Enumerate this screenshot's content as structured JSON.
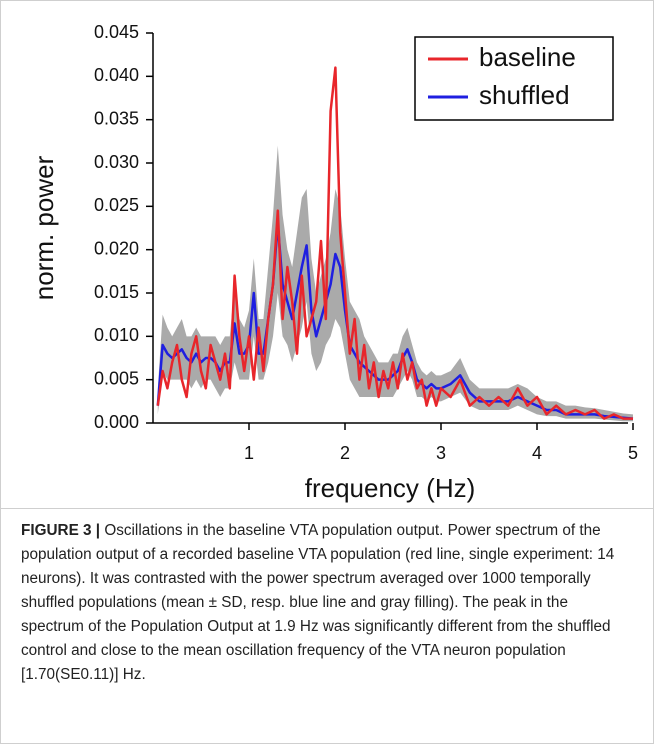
{
  "chart_data": {
    "type": "line",
    "xlabel": "frequency (Hz)",
    "ylabel": "norm. power",
    "x": [
      0.05,
      0.1,
      0.15,
      0.2,
      0.25,
      0.3,
      0.35,
      0.4,
      0.45,
      0.5,
      0.55,
      0.6,
      0.65,
      0.7,
      0.75,
      0.8,
      0.85,
      0.9,
      0.95,
      1.0,
      1.05,
      1.1,
      1.15,
      1.2,
      1.25,
      1.3,
      1.35,
      1.4,
      1.45,
      1.5,
      1.55,
      1.6,
      1.65,
      1.7,
      1.75,
      1.8,
      1.85,
      1.9,
      1.95,
      2.0,
      2.05,
      2.1,
      2.15,
      2.2,
      2.25,
      2.3,
      2.35,
      2.4,
      2.45,
      2.5,
      2.55,
      2.6,
      2.65,
      2.7,
      2.75,
      2.8,
      2.85,
      2.9,
      2.95,
      3.0,
      3.1,
      3.2,
      3.3,
      3.4,
      3.5,
      3.6,
      3.7,
      3.8,
      3.9,
      4.0,
      4.1,
      4.2,
      4.3,
      4.4,
      4.5,
      4.6,
      4.7,
      4.8,
      4.9,
      5.0
    ],
    "band": {
      "color": "#aaaaaa",
      "upper": [
        0.004,
        0.0125,
        0.011,
        0.01,
        0.011,
        0.012,
        0.01,
        0.01,
        0.011,
        0.01,
        0.01,
        0.01,
        0.01,
        0.009,
        0.01,
        0.01,
        0.016,
        0.012,
        0.011,
        0.013,
        0.019,
        0.012,
        0.012,
        0.018,
        0.024,
        0.032,
        0.024,
        0.02,
        0.018,
        0.022,
        0.026,
        0.027,
        0.019,
        0.015,
        0.017,
        0.019,
        0.022,
        0.027,
        0.025,
        0.019,
        0.014,
        0.013,
        0.012,
        0.01,
        0.009,
        0.008,
        0.007,
        0.007,
        0.007,
        0.008,
        0.008,
        0.01,
        0.011,
        0.009,
        0.007,
        0.006,
        0.0055,
        0.006,
        0.0055,
        0.0055,
        0.006,
        0.0075,
        0.005,
        0.004,
        0.004,
        0.004,
        0.004,
        0.0045,
        0.004,
        0.003,
        0.0025,
        0.0025,
        0.002,
        0.002,
        0.0018,
        0.0017,
        0.0015,
        0.0013,
        0.0011,
        0.001
      ],
      "lower": [
        0.001,
        0.006,
        0.005,
        0.005,
        0.005,
        0.005,
        0.005,
        0.004,
        0.005,
        0.004,
        0.005,
        0.005,
        0.004,
        0.003,
        0.004,
        0.004,
        0.007,
        0.005,
        0.005,
        0.005,
        0.01,
        0.005,
        0.005,
        0.007,
        0.01,
        0.015,
        0.01,
        0.009,
        0.007,
        0.009,
        0.011,
        0.014,
        0.008,
        0.006,
        0.007,
        0.009,
        0.01,
        0.012,
        0.011,
        0.008,
        0.005,
        0.004,
        0.003,
        0.003,
        0.003,
        0.003,
        0.003,
        0.003,
        0.003,
        0.003,
        0.004,
        0.005,
        0.006,
        0.005,
        0.003,
        0.003,
        0.0025,
        0.003,
        0.0025,
        0.0025,
        0.003,
        0.0035,
        0.002,
        0.0015,
        0.0015,
        0.0015,
        0.0015,
        0.002,
        0.0015,
        0.001,
        0.0008,
        0.0008,
        0.0005,
        0.0005,
        0.0005,
        0.0005,
        0.0004,
        0.0003,
        0.0002,
        0.0002
      ]
    },
    "series": [
      {
        "name": "baseline",
        "color": "#e8262b",
        "values": [
          0.002,
          0.006,
          0.004,
          0.007,
          0.009,
          0.005,
          0.003,
          0.008,
          0.01,
          0.006,
          0.004,
          0.009,
          0.007,
          0.005,
          0.008,
          0.004,
          0.017,
          0.01,
          0.006,
          0.01,
          0.005,
          0.011,
          0.006,
          0.012,
          0.016,
          0.0245,
          0.012,
          0.018,
          0.014,
          0.008,
          0.017,
          0.01,
          0.012,
          0.014,
          0.021,
          0.012,
          0.036,
          0.041,
          0.022,
          0.015,
          0.008,
          0.012,
          0.005,
          0.009,
          0.004,
          0.007,
          0.003,
          0.006,
          0.004,
          0.007,
          0.004,
          0.008,
          0.005,
          0.007,
          0.004,
          0.005,
          0.002,
          0.004,
          0.002,
          0.004,
          0.003,
          0.005,
          0.002,
          0.003,
          0.002,
          0.003,
          0.002,
          0.004,
          0.002,
          0.003,
          0.001,
          0.002,
          0.001,
          0.0015,
          0.001,
          0.0015,
          0.0005,
          0.001,
          0.0005,
          0.0005
        ]
      },
      {
        "name": "shuffled",
        "color": "#1f1fe0",
        "values": [
          0.002,
          0.009,
          0.008,
          0.0075,
          0.008,
          0.0085,
          0.0075,
          0.007,
          0.008,
          0.007,
          0.0075,
          0.0075,
          0.007,
          0.006,
          0.007,
          0.007,
          0.0115,
          0.008,
          0.008,
          0.009,
          0.015,
          0.008,
          0.008,
          0.012,
          0.016,
          0.023,
          0.016,
          0.014,
          0.012,
          0.015,
          0.018,
          0.0205,
          0.013,
          0.01,
          0.012,
          0.014,
          0.016,
          0.0195,
          0.018,
          0.013,
          0.009,
          0.008,
          0.007,
          0.0065,
          0.006,
          0.0055,
          0.005,
          0.005,
          0.005,
          0.0055,
          0.006,
          0.0075,
          0.0085,
          0.007,
          0.005,
          0.0045,
          0.004,
          0.0045,
          0.004,
          0.004,
          0.0045,
          0.0055,
          0.0035,
          0.0025,
          0.0025,
          0.0025,
          0.0025,
          0.003,
          0.0025,
          0.002,
          0.0015,
          0.0015,
          0.001,
          0.001,
          0.001,
          0.001,
          0.0008,
          0.0007,
          0.0006,
          0.0005
        ]
      }
    ],
    "xlim": [
      0,
      5
    ],
    "xticks": [
      1,
      2,
      3,
      4,
      5
    ],
    "ylim": [
      0,
      0.045
    ],
    "yticks": [
      {
        "value": 0,
        "label": "0.000"
      },
      0.005,
      {
        "value": 0.01,
        "label": "0.010"
      },
      0.015,
      {
        "value": 0.02,
        "label": "0.020"
      },
      0.025,
      {
        "value": 0.03,
        "label": "0.030"
      },
      0.035,
      {
        "value": 0.04,
        "label": "0.040"
      },
      0.045
    ],
    "legend": "upper right"
  },
  "caption": {
    "label": "FIGURE 3 |",
    "text": "Oscillations in the baseline VTA population output. Power spectrum of the population output of a recorded baseline VTA population (red line, single experiment: 14 neurons). It was contrasted with the power spectrum averaged over 1000 temporally shuffled populations (mean ± SD, resp. blue line and gray filling). The peak in the spectrum of the Population Output at 1.9 Hz was significantly different from the shuffled control and close to the mean oscillation frequency of the VTA neuron population [1.70(SE0.11)] Hz."
  }
}
